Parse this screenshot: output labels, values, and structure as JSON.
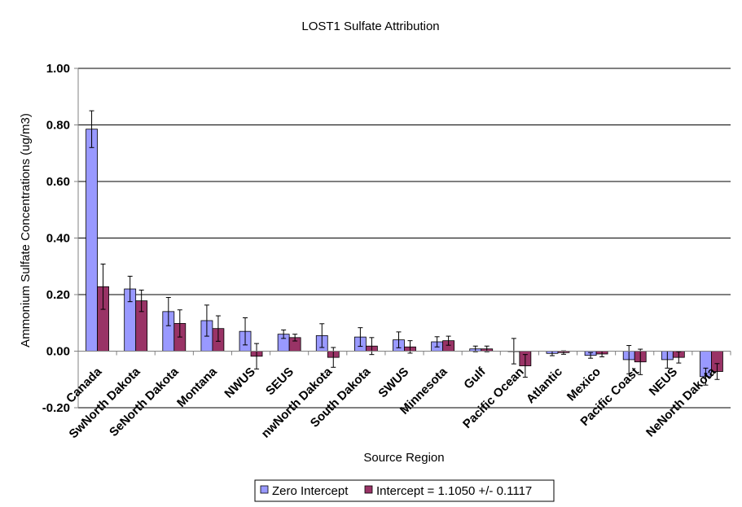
{
  "chart_data": {
    "type": "bar",
    "title": "LOST1 Sulfate Attribution",
    "xlabel": "Source Region",
    "ylabel": "Ammonium Sulfate Concentrations (ug/m3)",
    "ylim": [
      -0.2,
      1.0
    ],
    "ytick_values": [
      -0.2,
      0.0,
      0.2,
      0.4,
      0.6,
      0.8,
      1.0
    ],
    "ytick_labels": [
      "-0.20",
      "0.00",
      "0.20",
      "0.40",
      "0.60",
      "0.80",
      "1.00"
    ],
    "grid": true,
    "legend_position": "bottom",
    "categories": [
      "Canada",
      "SwNorth Dakota",
      "SeNorth Dakota",
      "Montana",
      "NWUS",
      "SEUS",
      "nwNorth Dakota",
      "South Dakota",
      "SWUS",
      "Minnesota",
      "Gulf",
      "Pacific Ocean",
      "Atlantic",
      "Mexico",
      "Pacific Coast",
      "NEUS",
      "NeNorth Dakota"
    ],
    "series": [
      {
        "name": "Zero Intercept",
        "color": "#9999ff",
        "values": [
          0.785,
          0.22,
          0.14,
          0.108,
          0.07,
          0.06,
          0.055,
          0.05,
          0.04,
          0.033,
          0.008,
          0.0,
          -0.008,
          -0.015,
          -0.03,
          -0.03,
          -0.09
        ],
        "errors": [
          0.065,
          0.045,
          0.05,
          0.055,
          0.048,
          0.015,
          0.042,
          0.033,
          0.028,
          0.018,
          0.01,
          0.045,
          0.008,
          0.01,
          0.05,
          0.03,
          0.03
        ]
      },
      {
        "name": "Intercept = 1.1050 +/- 0.1117",
        "color": "#993366",
        "values": [
          0.228,
          0.178,
          0.098,
          0.08,
          -0.018,
          0.048,
          -0.022,
          0.018,
          0.015,
          0.037,
          0.008,
          -0.052,
          -0.005,
          -0.01,
          -0.038,
          -0.022,
          -0.072
        ],
        "errors": [
          0.08,
          0.038,
          0.048,
          0.045,
          0.045,
          0.012,
          0.035,
          0.03,
          0.022,
          0.016,
          0.01,
          0.04,
          0.006,
          0.01,
          0.045,
          0.02,
          0.028
        ]
      }
    ]
  },
  "colors": {
    "plot_background": "#ffffff",
    "grid": "#000000",
    "axis": "#808080"
  }
}
